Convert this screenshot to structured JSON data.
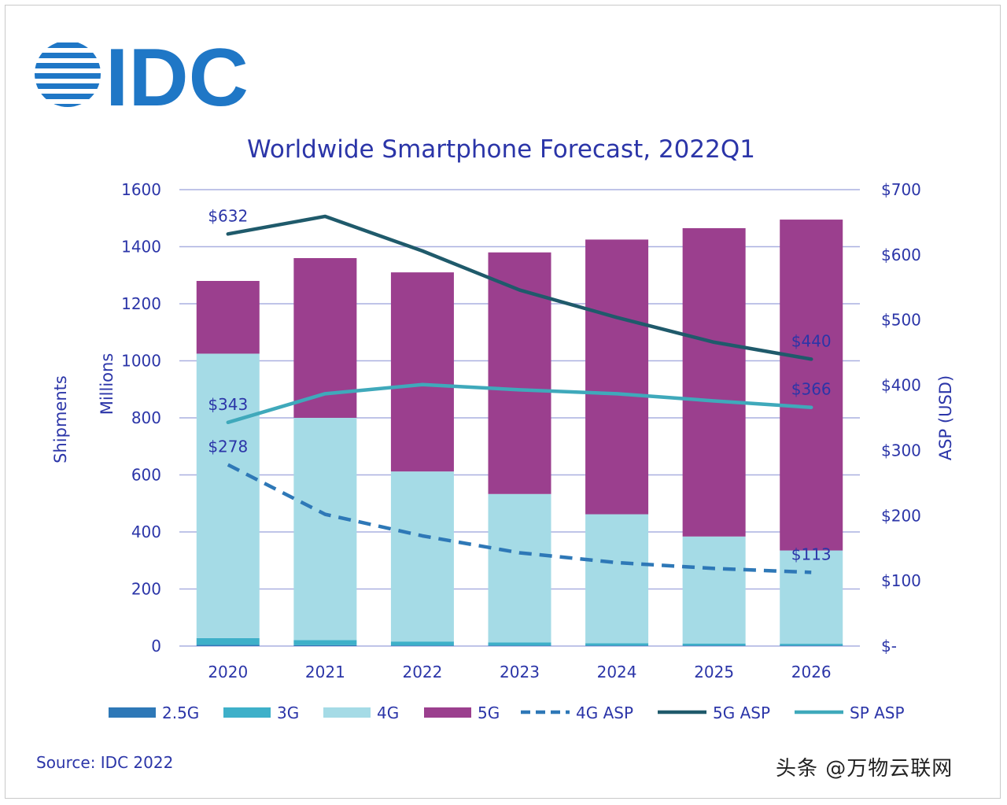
{
  "logo_text": "IDC",
  "source": "Source: IDC 2022",
  "watermark": "头条 @万物云联网",
  "colors": {
    "g25": "#2e78b7",
    "g3": "#3eb0c9",
    "g4": "#a5dbe6",
    "g5": "#9b3f8e",
    "asp4g": "#2e78b7",
    "asp5g": "#1f5a6b",
    "aspsp": "#3fa9bb",
    "text": "#2b35a8",
    "grid": "#aab0e0",
    "logo": "#1f77c6"
  },
  "chart_data": {
    "type": "bar",
    "stacked": true,
    "title": "Worldwide Smartphone Forecast, 2022Q1",
    "categories": [
      "2020",
      "2021",
      "2022",
      "2023",
      "2024",
      "2025",
      "2026"
    ],
    "y_left": {
      "label_outer": "Shipments",
      "label_inner": "Millions",
      "range": [
        0,
        1600
      ],
      "ticks": [
        "0",
        "200",
        "400",
        "600",
        "800",
        "1000",
        "1200",
        "1400",
        "1600"
      ]
    },
    "y_right": {
      "label": "ASP (USD)",
      "range": [
        0,
        700
      ],
      "ticks": [
        "$-",
        "$100",
        "$200",
        "$300",
        "$400",
        "$500",
        "$600",
        "$700"
      ]
    },
    "series": [
      {
        "name": "2.5G",
        "kind": "bar",
        "axis": "left",
        "color_key": "g25",
        "values": [
          4,
          3,
          2,
          2,
          2,
          2,
          2
        ]
      },
      {
        "name": "3G",
        "kind": "bar",
        "axis": "left",
        "color_key": "g3",
        "values": [
          24,
          18,
          14,
          11,
          8,
          7,
          6
        ]
      },
      {
        "name": "4G",
        "kind": "bar",
        "axis": "left",
        "color_key": "g4",
        "values": [
          997,
          779,
          596,
          520,
          452,
          375,
          327
        ]
      },
      {
        "name": "5G",
        "kind": "bar",
        "axis": "left",
        "color_key": "g5",
        "values": [
          255,
          560,
          698,
          847,
          963,
          1081,
          1160
        ]
      },
      {
        "name": "4G ASP",
        "kind": "line",
        "dashed": true,
        "axis": "right",
        "color_key": "asp4g",
        "values": [
          278,
          202,
          169,
          143,
          128,
          119,
          113
        ]
      },
      {
        "name": "5G ASP",
        "kind": "line",
        "dashed": false,
        "axis": "right",
        "color_key": "asp5g",
        "values": [
          632,
          659,
          606,
          546,
          504,
          466,
          440
        ]
      },
      {
        "name": "SP ASP",
        "kind": "line",
        "dashed": false,
        "axis": "right",
        "color_key": "aspsp",
        "values": [
          343,
          387,
          401,
          393,
          387,
          376,
          366
        ]
      }
    ],
    "annotations": [
      {
        "series": "5G ASP",
        "index": 0,
        "text": "$632",
        "pos": "above"
      },
      {
        "series": "5G ASP",
        "index": 6,
        "text": "$440",
        "pos": "above"
      },
      {
        "series": "SP ASP",
        "index": 0,
        "text": "$343",
        "pos": "above"
      },
      {
        "series": "SP ASP",
        "index": 6,
        "text": "$366",
        "pos": "above"
      },
      {
        "series": "4G ASP",
        "index": 0,
        "text": "$278",
        "pos": "above"
      },
      {
        "series": "4G ASP",
        "index": 6,
        "text": "$113",
        "pos": "above"
      }
    ],
    "legend": {
      "placement": "bottom",
      "items": [
        {
          "name": "2.5G",
          "style": "box",
          "color_key": "g25"
        },
        {
          "name": "3G",
          "style": "box",
          "color_key": "g3"
        },
        {
          "name": "4G",
          "style": "box",
          "color_key": "g4"
        },
        {
          "name": "5G",
          "style": "box",
          "color_key": "g5"
        },
        {
          "name": "4G ASP",
          "style": "dash",
          "color_key": "asp4g"
        },
        {
          "name": "5G ASP",
          "style": "line",
          "color_key": "asp5g"
        },
        {
          "name": "SP ASP",
          "style": "line",
          "color_key": "aspsp"
        }
      ]
    },
    "grid": true
  }
}
